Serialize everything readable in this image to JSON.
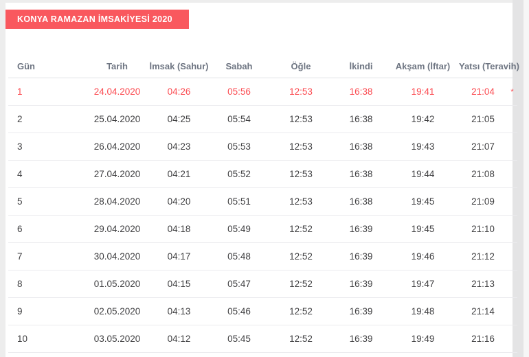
{
  "page": {
    "title_badge": "KONYA RAMAZAN İMSAKİYESİ 2020"
  },
  "colors": {
    "banner_bg": "#f9585e",
    "banner_text": "#ffffff",
    "header_text": "#6e7582",
    "cell_text": "#3f3f41",
    "highlight_text": "#fb4a50",
    "divider": "#ebebee"
  },
  "table": {
    "columns": [
      {
        "key": "gun",
        "label": "Gün",
        "align": "left"
      },
      {
        "key": "tarih",
        "label": "Tarih",
        "align": "center"
      },
      {
        "key": "imsak",
        "label": "İmsak (Sahur)",
        "align": "center"
      },
      {
        "key": "sabah",
        "label": "Sabah",
        "align": "center"
      },
      {
        "key": "ogle",
        "label": "Öğle",
        "align": "center"
      },
      {
        "key": "ikindi",
        "label": "İkindi",
        "align": "center"
      },
      {
        "key": "aksam",
        "label": "Akşam (İftar)",
        "align": "center"
      },
      {
        "key": "yatsi",
        "label": "Yatsı (Teravih)",
        "align": "center"
      },
      {
        "key": "note",
        "label": "",
        "align": "center"
      }
    ],
    "rows": [
      {
        "gun": "1",
        "tarih": "24.04.2020",
        "imsak": "04:26",
        "sabah": "05:56",
        "ogle": "12:53",
        "ikindi": "16:38",
        "aksam": "19:41",
        "yatsi": "21:04",
        "note": "*",
        "highlight": true
      },
      {
        "gun": "2",
        "tarih": "25.04.2020",
        "imsak": "04:25",
        "sabah": "05:54",
        "ogle": "12:53",
        "ikindi": "16:38",
        "aksam": "19:42",
        "yatsi": "21:05",
        "note": ""
      },
      {
        "gun": "3",
        "tarih": "26.04.2020",
        "imsak": "04:23",
        "sabah": "05:53",
        "ogle": "12:53",
        "ikindi": "16:38",
        "aksam": "19:43",
        "yatsi": "21:07",
        "note": ""
      },
      {
        "gun": "4",
        "tarih": "27.04.2020",
        "imsak": "04:21",
        "sabah": "05:52",
        "ogle": "12:53",
        "ikindi": "16:38",
        "aksam": "19:44",
        "yatsi": "21:08",
        "note": ""
      },
      {
        "gun": "5",
        "tarih": "28.04.2020",
        "imsak": "04:20",
        "sabah": "05:51",
        "ogle": "12:53",
        "ikindi": "16:38",
        "aksam": "19:45",
        "yatsi": "21:09",
        "note": ""
      },
      {
        "gun": "6",
        "tarih": "29.04.2020",
        "imsak": "04:18",
        "sabah": "05:49",
        "ogle": "12:52",
        "ikindi": "16:39",
        "aksam": "19:45",
        "yatsi": "21:10",
        "note": ""
      },
      {
        "gun": "7",
        "tarih": "30.04.2020",
        "imsak": "04:17",
        "sabah": "05:48",
        "ogle": "12:52",
        "ikindi": "16:39",
        "aksam": "19:46",
        "yatsi": "21:12",
        "note": ""
      },
      {
        "gun": "8",
        "tarih": "01.05.2020",
        "imsak": "04:15",
        "sabah": "05:47",
        "ogle": "12:52",
        "ikindi": "16:39",
        "aksam": "19:47",
        "yatsi": "21:13",
        "note": ""
      },
      {
        "gun": "9",
        "tarih": "02.05.2020",
        "imsak": "04:13",
        "sabah": "05:46",
        "ogle": "12:52",
        "ikindi": "16:39",
        "aksam": "19:48",
        "yatsi": "21:14",
        "note": ""
      },
      {
        "gun": "10",
        "tarih": "03.05.2020",
        "imsak": "04:12",
        "sabah": "05:45",
        "ogle": "12:52",
        "ikindi": "16:39",
        "aksam": "19:49",
        "yatsi": "21:16",
        "note": ""
      }
    ]
  }
}
